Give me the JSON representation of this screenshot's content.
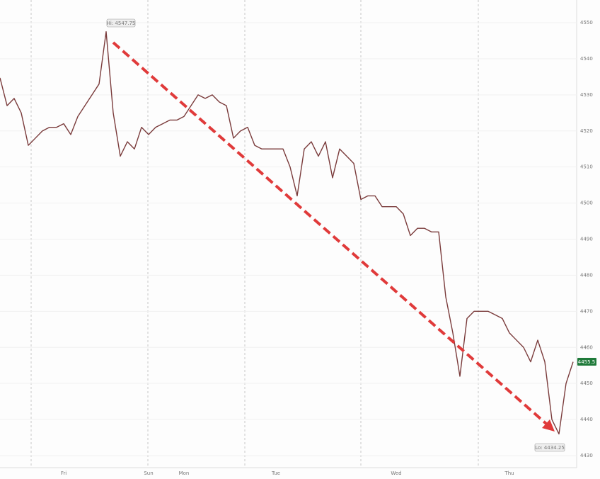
{
  "chart_data": {
    "type": "line",
    "categories": [
      null,
      null,
      null,
      null,
      null,
      null,
      null,
      null,
      null,
      "Fri",
      null,
      null,
      null,
      null,
      null,
      null,
      null,
      null,
      null,
      null,
      null,
      "Sun",
      null,
      null,
      null,
      null,
      "Mon",
      null,
      null,
      null,
      null,
      null,
      null,
      null,
      null,
      null,
      null,
      null,
      null,
      "Tue",
      null,
      null,
      null,
      null,
      null,
      null,
      null,
      null,
      null,
      null,
      null,
      null,
      null,
      null,
      null,
      null,
      "Wed",
      null,
      null,
      null,
      null,
      null,
      null,
      null,
      null,
      null,
      null,
      null,
      null,
      null,
      null,
      null,
      "Thu",
      null,
      null,
      null,
      null,
      null,
      null,
      null,
      null,
      null
    ],
    "values": [
      4534.7,
      4527,
      4529,
      4525,
      4516,
      4518,
      4520,
      4521,
      4521,
      4522,
      4519,
      4524,
      4527,
      4530,
      4533,
      4547.5,
      4525,
      4513,
      4517,
      4515,
      4521,
      4519,
      4521,
      4522,
      4523,
      4523,
      4524,
      4527,
      4530,
      4529,
      4530,
      4528,
      4527,
      4518,
      4520,
      4521,
      4516,
      4515,
      4515,
      4515,
      4515,
      4510,
      4502,
      4515,
      4517,
      4513,
      4517,
      4507,
      4515,
      4513,
      4511,
      4501,
      4502,
      4502,
      4499,
      4499,
      4499,
      4497,
      4491,
      4493,
      4493,
      4492,
      4492,
      4474,
      4464,
      4452,
      4468,
      4470,
      4470,
      4470,
      4469,
      4468,
      4464,
      4462,
      4460,
      4456,
      4462,
      4456,
      4440,
      4436,
      4450,
      4456
    ],
    "color": "#7a3b3b",
    "ylim": [
      4430,
      4550
    ],
    "yticks": [
      4430,
      4440,
      4450,
      4460,
      4470,
      4480,
      4490,
      4500,
      4510,
      4520,
      4530,
      4540,
      4550
    ],
    "grid": true,
    "hi_label": "Hi: 4547.75",
    "lo_label": "Lo: 4434.25",
    "last_label": "4455.5"
  }
}
